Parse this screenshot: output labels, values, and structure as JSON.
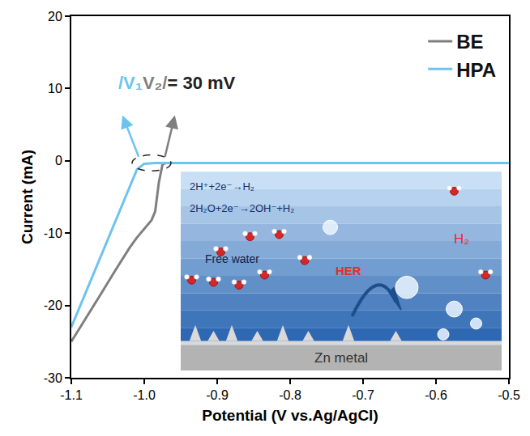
{
  "chart_data": {
    "type": "line",
    "x_label": "Potential (V vs.Ag/AgCl)",
    "y_label": "Current (mA)",
    "x": [
      -1.1,
      -1.08,
      -1.06,
      -1.04,
      -1.02,
      -1.01,
      -1.0,
      -0.99,
      -0.985,
      -0.98,
      -0.975,
      -0.97,
      -0.95,
      -0.9,
      -0.8,
      -0.7,
      -0.6,
      -0.5
    ],
    "series": [
      {
        "name": "BE",
        "color": "#7f7f7f",
        "values": [
          -25,
          -21.8,
          -18.5,
          -15.2,
          -12,
          -10.6,
          -9.4,
          -8.2,
          -7,
          -3,
          -0.5,
          -0.3,
          -0.3,
          -0.3,
          -0.3,
          -0.3,
          -0.3,
          -0.3
        ]
      },
      {
        "name": "HPA",
        "color": "#6cc4ee",
        "values": [
          -23,
          -18.2,
          -13.4,
          -8.6,
          -3.6,
          -1.2,
          -0.4,
          -0.3,
          -0.3,
          -0.3,
          -0.3,
          -0.3,
          -0.3,
          -0.3,
          -0.3,
          -0.3,
          -0.3,
          -0.3
        ]
      }
    ],
    "xlim": [
      -1.1,
      -0.5
    ],
    "ylim": [
      -30,
      20
    ],
    "xticks": [
      -1.1,
      {
        "value": -1.0,
        "label": "-1.0"
      },
      -0.9,
      -0.8,
      -0.7,
      -0.6,
      -0.5
    ],
    "yticks": [
      -30,
      -20,
      -10,
      0,
      10,
      20
    ],
    "grid": false,
    "legend": "upper right",
    "annotation": [
      "/V₁",
      "V₂/",
      "= 30 mV"
    ],
    "inset": {
      "equations": [
        "2H⁺+2e⁻→H₂",
        "2H₂O+2e⁻→2OH⁻+H₂"
      ],
      "labels": [
        "Free water",
        "HER",
        "H₂",
        "Zn metal"
      ]
    }
  }
}
